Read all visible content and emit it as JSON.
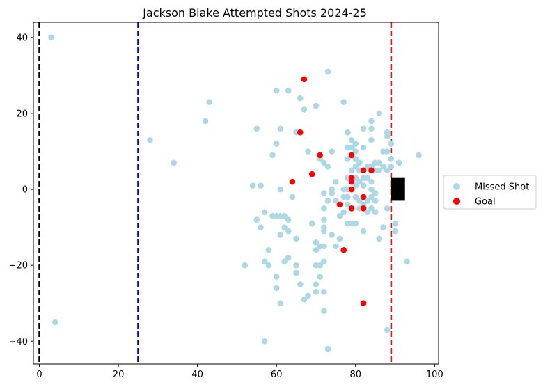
{
  "chart_data": {
    "type": "scatter",
    "title": "Jackson Blake Attempted Shots 2024-25",
    "xlabel": "",
    "ylabel": "",
    "xlim": [
      -1.5,
      101
    ],
    "ylim": [
      -46,
      44
    ],
    "x_ticks": [
      0,
      20,
      40,
      60,
      80,
      100
    ],
    "y_ticks": [
      -40,
      -20,
      0,
      20,
      40
    ],
    "x_tick_labels": [
      "0",
      "20",
      "40",
      "60",
      "80",
      "100"
    ],
    "y_tick_labels": [
      "−40",
      "−20",
      "0",
      "20",
      "40"
    ],
    "legend_position": "right",
    "reference_lines": [
      {
        "x": 0,
        "color": "#000000",
        "style": "dashed"
      },
      {
        "x": 25,
        "color": "#0000dd",
        "style": "dashed"
      },
      {
        "x": 89,
        "color": "#dd1c1c",
        "style": "dashed"
      }
    ],
    "net": {
      "x": [
        89,
        92.5
      ],
      "y": [
        -3,
        3
      ],
      "color": "#000000"
    },
    "series": [
      {
        "name": "Missed Shot",
        "color": "#add8e6",
        "points": [
          [
            3,
            40
          ],
          [
            4,
            -35
          ],
          [
            28,
            13
          ],
          [
            34,
            7
          ],
          [
            42,
            18
          ],
          [
            43,
            23
          ],
          [
            52,
            -20
          ],
          [
            54,
            1
          ],
          [
            55,
            16
          ],
          [
            55,
            -8
          ],
          [
            56,
            1
          ],
          [
            56,
            -10
          ],
          [
            57,
            -6
          ],
          [
            57,
            -19
          ],
          [
            57,
            -40
          ],
          [
            58,
            -16
          ],
          [
            58,
            -20
          ],
          [
            59,
            9
          ],
          [
            59,
            -7
          ],
          [
            60,
            26
          ],
          [
            60,
            12
          ],
          [
            60,
            -7
          ],
          [
            60,
            -23
          ],
          [
            60,
            -26
          ],
          [
            61,
            16
          ],
          [
            61,
            0
          ],
          [
            61,
            -7
          ],
          [
            61,
            -12
          ],
          [
            61,
            -30
          ],
          [
            62,
            -7
          ],
          [
            62,
            -10
          ],
          [
            62,
            -19
          ],
          [
            63,
            26
          ],
          [
            63,
            -8
          ],
          [
            63,
            -11
          ],
          [
            63,
            -18
          ],
          [
            64,
            -2
          ],
          [
            65,
            15
          ],
          [
            65,
            -13
          ],
          [
            65,
            -20
          ],
          [
            65,
            -22
          ],
          [
            66,
            24
          ],
          [
            66,
            -25
          ],
          [
            67,
            21
          ],
          [
            67,
            -29
          ],
          [
            68,
            10
          ],
          [
            68,
            -28
          ],
          [
            69,
            -9
          ],
          [
            70,
            22
          ],
          [
            70,
            -14
          ],
          [
            70,
            -16
          ],
          [
            70,
            -20
          ],
          [
            70,
            -25
          ],
          [
            70,
            -27
          ],
          [
            71,
            8
          ],
          [
            71,
            -15
          ],
          [
            71,
            -20
          ],
          [
            71,
            -23
          ],
          [
            72,
            7
          ],
          [
            72,
            -1
          ],
          [
            72,
            -5
          ],
          [
            72,
            -8
          ],
          [
            72,
            -10
          ],
          [
            72,
            -11
          ],
          [
            72,
            -15
          ],
          [
            72,
            -19
          ],
          [
            72,
            -27
          ],
          [
            72,
            -32
          ],
          [
            73,
            31
          ],
          [
            73,
            6
          ],
          [
            73,
            -3
          ],
          [
            73,
            -42
          ],
          [
            74,
            10
          ],
          [
            74,
            0
          ],
          [
            74,
            -1
          ],
          [
            74,
            -12
          ],
          [
            75,
            2
          ],
          [
            75,
            -3
          ],
          [
            75,
            -15
          ],
          [
            76,
            -7
          ],
          [
            76,
            -13
          ],
          [
            77,
            23
          ],
          [
            77,
            0
          ],
          [
            77,
            -2
          ],
          [
            77,
            -6
          ],
          [
            78,
            15
          ],
          [
            78,
            11
          ],
          [
            78,
            8
          ],
          [
            78,
            3
          ],
          [
            78,
            0
          ],
          [
            78,
            -2
          ],
          [
            78,
            -4
          ],
          [
            78,
            -9
          ],
          [
            79,
            13
          ],
          [
            79,
            11
          ],
          [
            79,
            5
          ],
          [
            79,
            -9
          ],
          [
            80,
            12
          ],
          [
            80,
            10
          ],
          [
            80,
            8
          ],
          [
            80,
            6
          ],
          [
            80,
            3
          ],
          [
            80,
            1
          ],
          [
            80,
            -2
          ],
          [
            80,
            -9
          ],
          [
            81,
            7
          ],
          [
            81,
            5
          ],
          [
            81,
            2
          ],
          [
            81,
            -3
          ],
          [
            81,
            -5
          ],
          [
            82,
            16
          ],
          [
            82,
            11
          ],
          [
            82,
            3
          ],
          [
            82,
            1
          ],
          [
            82,
            -4
          ],
          [
            82,
            -11
          ],
          [
            83,
            6
          ],
          [
            83,
            3
          ],
          [
            83,
            -3
          ],
          [
            83,
            -6
          ],
          [
            84,
            18
          ],
          [
            84,
            16
          ],
          [
            84,
            13
          ],
          [
            84,
            6
          ],
          [
            84,
            2
          ],
          [
            84,
            0
          ],
          [
            84,
            -2
          ],
          [
            84,
            -5
          ],
          [
            85,
            7
          ],
          [
            85,
            5
          ],
          [
            85,
            -1
          ],
          [
            85,
            -3
          ],
          [
            85,
            -6
          ],
          [
            86,
            20
          ],
          [
            86,
            7
          ],
          [
            86,
            5
          ],
          [
            86,
            -13
          ],
          [
            87,
            10
          ],
          [
            87,
            6
          ],
          [
            87,
            -10
          ],
          [
            88,
            15
          ],
          [
            88,
            14
          ],
          [
            88,
            10
          ],
          [
            88,
            5
          ],
          [
            88,
            -5
          ],
          [
            88,
            -37
          ],
          [
            89,
            12
          ],
          [
            89,
            8
          ],
          [
            89,
            6
          ],
          [
            90,
            -9
          ],
          [
            90,
            -11
          ],
          [
            91,
            7
          ],
          [
            93,
            -19
          ],
          [
            96,
            9
          ]
        ]
      },
      {
        "name": "Goal",
        "color": "#ff0000",
        "points": [
          [
            67,
            29
          ],
          [
            66,
            15
          ],
          [
            71,
            9
          ],
          [
            79,
            9
          ],
          [
            69,
            4
          ],
          [
            82,
            5
          ],
          [
            84,
            5
          ],
          [
            64,
            2
          ],
          [
            79,
            3
          ],
          [
            79,
            2
          ],
          [
            79,
            0
          ],
          [
            76,
            -4
          ],
          [
            82,
            -2
          ],
          [
            79,
            -5
          ],
          [
            82,
            -5
          ],
          [
            77,
            -16
          ],
          [
            82,
            -30
          ]
        ]
      }
    ]
  }
}
